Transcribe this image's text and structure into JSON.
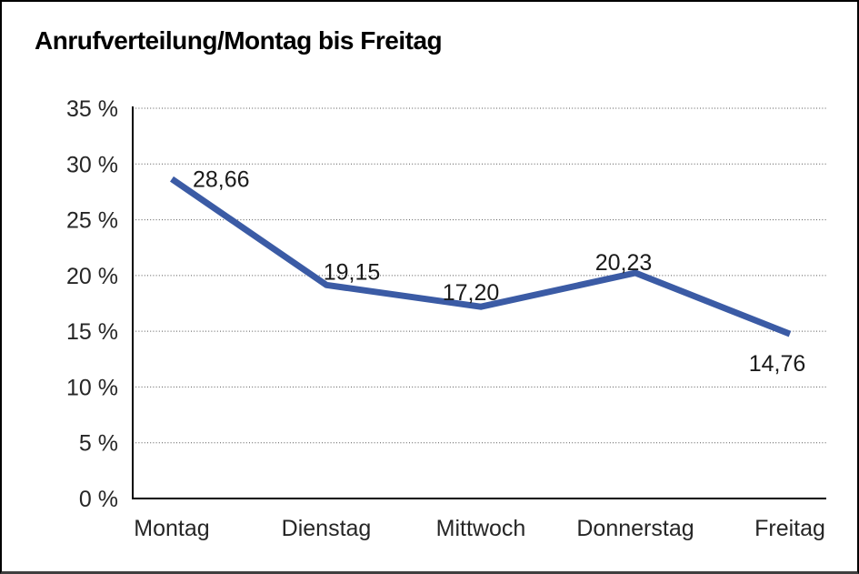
{
  "chart_data": {
    "type": "line",
    "title": "Anrufverteilung/Montag bis Freitag",
    "categories": [
      "Montag",
      "Dienstag",
      "Mittwoch",
      "Donnerstag",
      "Freitag"
    ],
    "values": [
      28.66,
      19.15,
      17.2,
      20.23,
      14.76
    ],
    "value_labels": [
      "28,66",
      "19,15",
      "17,20",
      "20,23",
      "14,76"
    ],
    "ytick_labels": [
      "0 %",
      "5 %",
      "10 %",
      "15 %",
      "20 %",
      "25 %",
      "30 %",
      "35 %"
    ],
    "ylim": [
      0,
      35
    ],
    "ytick_step": 5,
    "grid": "horizontal-dotted",
    "legend": "none",
    "line_color": "#3B5BA5",
    "gridline_color": "#555555",
    "axis_color": "#000000",
    "tick_label_color": "#262626",
    "value_label_color": "#1a1a1a"
  }
}
